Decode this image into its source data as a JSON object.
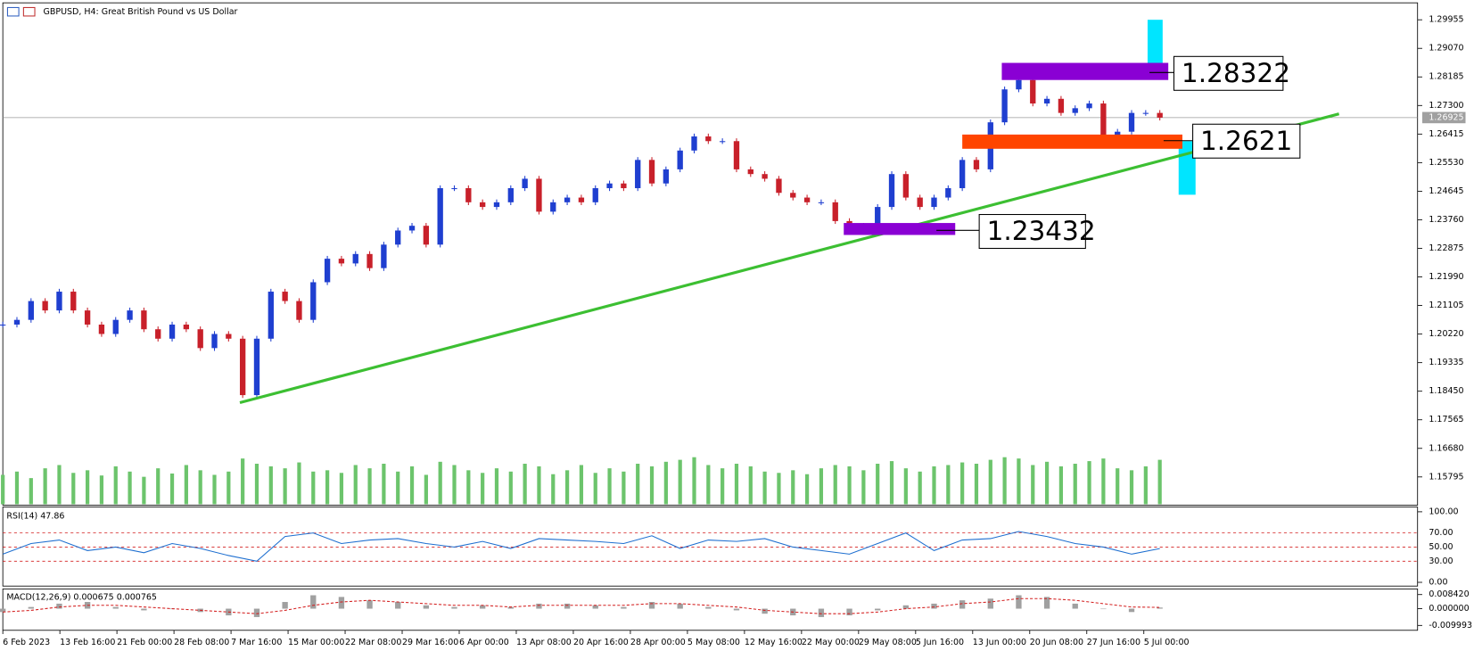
{
  "chart_data": {
    "type": "candlestick",
    "title": "GBPUSD, H4:  Great British Pound vs US Dollar",
    "close": [
      1.20514,
      1.2066,
      1.21243,
      1.20952,
      1.21534,
      1.20952,
      1.20514,
      1.20223,
      1.2066,
      1.20952,
      1.20369,
      1.20077,
      1.20514,
      1.20369,
      1.19786,
      1.20223,
      1.20077,
      1.18329,
      1.20077,
      1.21534,
      1.21243,
      1.2066,
      1.21826,
      1.22554,
      1.22408,
      1.227,
      1.22263,
      1.22991,
      1.23428,
      1.23574,
      1.22991,
      1.24739,
      1.24739,
      1.24302,
      1.24157,
      1.24302,
      1.24739,
      1.25031,
      1.24011,
      1.24302,
      1.24448,
      1.24302,
      1.24739,
      1.24885,
      1.24739,
      1.25614,
      1.24885,
      1.25322,
      1.25905,
      1.26342,
      1.26196,
      1.26196,
      1.25322,
      1.25176,
      1.25031,
      1.24594,
      1.24448,
      1.24302,
      1.24302,
      1.2372,
      1.23428,
      1.23574,
      1.24157,
      1.25176,
      1.24448,
      1.24157,
      1.24448,
      1.24739,
      1.25614,
      1.25322,
      1.26779,
      1.27799,
      1.2809,
      1.27362,
      1.27507,
      1.2707,
      1.27216,
      1.27362,
      1.26342,
      1.26488,
      1.2707,
      1.2707,
      1.26925
    ],
    "volume": [
      45,
      50,
      40,
      55,
      60,
      48,
      52,
      44,
      58,
      50,
      42,
      55,
      47,
      60,
      52,
      45,
      50,
      70,
      62,
      58,
      55,
      64,
      50,
      52,
      48,
      60,
      55,
      62,
      50,
      58,
      45,
      65,
      60,
      52,
      48,
      55,
      50,
      62,
      58,
      46,
      52,
      60,
      48,
      55,
      50,
      62,
      58,
      65,
      68,
      72,
      60,
      55,
      62,
      58,
      50,
      48,
      52,
      46,
      55,
      60,
      58,
      52,
      62,
      66,
      55,
      50,
      58,
      60,
      64,
      62,
      68,
      72,
      70,
      60,
      65,
      58,
      62,
      66,
      70,
      55,
      52,
      58,
      68
    ],
    "up_color": "#1f3fd0",
    "down_color": "#c8202a",
    "volume_color": "#6cc46c",
    "ylim": [
      1.1492,
      1.3048
    ],
    "yticks": [
      {
        "value": 1.29955,
        "label": "1.29955"
      },
      {
        "value": 1.2907,
        "label": "1.29070"
      },
      {
        "value": 1.28185,
        "label": "1.28185"
      },
      {
        "value": 1.273,
        "label": "1.27300"
      },
      {
        "value": 1.26415,
        "label": "1.26415"
      },
      {
        "value": 1.2553,
        "label": "1.25530"
      },
      {
        "value": 1.24645,
        "label": "1.24645"
      },
      {
        "value": 1.2376,
        "label": "1.23760"
      },
      {
        "value": 1.22875,
        "label": "1.22875"
      },
      {
        "value": 1.2199,
        "label": "1.21990"
      },
      {
        "value": 1.21105,
        "label": "1.21105"
      },
      {
        "value": 1.2022,
        "label": "1.20220"
      },
      {
        "value": 1.19335,
        "label": "1.19335"
      },
      {
        "value": 1.1845,
        "label": "1.18450"
      },
      {
        "value": 1.17565,
        "label": "1.17565"
      },
      {
        "value": 1.1668,
        "label": "1.16680"
      },
      {
        "value": 1.15795,
        "label": "1.15795"
      }
    ],
    "current_price": 1.26925,
    "x_labels": [
      "6 Feb 2023",
      "13 Feb 16:00",
      "21 Feb 00:00",
      "28 Feb 08:00",
      "7 Mar 16:00",
      "15 Mar 00:00",
      "22 Mar 08:00",
      "29 Mar 16:00",
      "6 Apr 00:00",
      "13 Apr 08:00",
      "20 Apr 16:00",
      "28 Apr 00:00",
      "5 May 08:00",
      "12 May 16:00",
      "22 May 00:00",
      "29 May 08:00",
      "5 Jun 16:00",
      "13 Jun 00:00",
      "20 Jun 08:00",
      "27 Jun 16:00",
      "5 Jul 00:00"
    ],
    "trendline": {
      "x": [
        16.8,
        94.7
      ],
      "y": [
        1.18096,
        1.27041
      ],
      "color": "#3cbf32"
    },
    "zones": [
      {
        "label": 1.28322,
        "range": [
          1.2809,
          1.2862
        ],
        "x": [
          70.8,
          82.6
        ],
        "color": "#8a00d4"
      },
      {
        "label": 1.2621,
        "range": [
          1.2596,
          1.264
        ],
        "x": [
          68,
          83.6
        ],
        "color": "#ff4500"
      },
      {
        "label": 1.23432,
        "range": [
          1.2329,
          1.2366
        ],
        "x": [
          59.6,
          67.5
        ],
        "color": "#8a00d4"
      }
    ],
    "rsi": {
      "title": "RSI(14) 47.86",
      "color": "#1e6fd0",
      "ylim": [
        -5.3,
        106.7
      ],
      "yticks": [
        {
          "value": 100,
          "label": "100.00"
        },
        {
          "value": 70,
          "label": "70.00"
        },
        {
          "value": 50,
          "label": "50.00"
        },
        {
          "value": 30,
          "label": "30.00"
        },
        {
          "value": 0,
          "label": "0.00"
        }
      ],
      "values": [
        40,
        55,
        60,
        45,
        50,
        42,
        55,
        48,
        38,
        30,
        65,
        70,
        55,
        60,
        62,
        55,
        50,
        58,
        48,
        62,
        60,
        58,
        55,
        66,
        48,
        60,
        58,
        62,
        50,
        45,
        40,
        55,
        70,
        45,
        60,
        62,
        72,
        65,
        55,
        50,
        40,
        47.86
      ]
    },
    "macd": {
      "title": "MACD(12,26,9) 0.000675 0.000765",
      "ylim": [
        -0.0129,
        0.0118
      ],
      "yticks": [
        {
          "value": 0.00842,
          "label": "0.008420"
        },
        {
          "value": 0,
          "label": "0.000000"
        },
        {
          "value": -0.009993,
          "label": "-0.009993"
        }
      ],
      "histogram": [
        -0.002,
        0.001,
        0.003,
        0.004,
        0.001,
        -0.001,
        0,
        -0.002,
        -0.004,
        -0.005,
        0.004,
        0.008,
        0.007,
        0.005,
        0.004,
        0.002,
        0.001,
        0.002,
        0.001,
        0.003,
        0.003,
        0.002,
        0.001,
        0.004,
        0.003,
        0.001,
        -0.001,
        -0.003,
        -0.004,
        -0.005,
        -0.004,
        -0.001,
        0.002,
        0.003,
        0.005,
        0.006,
        0.008,
        0.007,
        0.003,
        0,
        -0.002,
        0.000675
      ],
      "signal": [
        -0.002,
        -0.001,
        0.001,
        0.002,
        0.002,
        0.001,
        0,
        -0.001,
        -0.002,
        -0.003,
        -0.001,
        0.002,
        0.004,
        0.005,
        0.004,
        0.003,
        0.002,
        0.002,
        0.001,
        0.002,
        0.002,
        0.002,
        0.002,
        0.003,
        0.003,
        0.002,
        0.001,
        -0.001,
        -0.002,
        -0.003,
        -0.003,
        -0.002,
        0,
        0.001,
        0.003,
        0.004,
        0.006,
        0.006,
        0.005,
        0.003,
        0.001,
        0.000765
      ],
      "hist_color": "#a0a0a0",
      "signal_color": "#d42020"
    }
  }
}
